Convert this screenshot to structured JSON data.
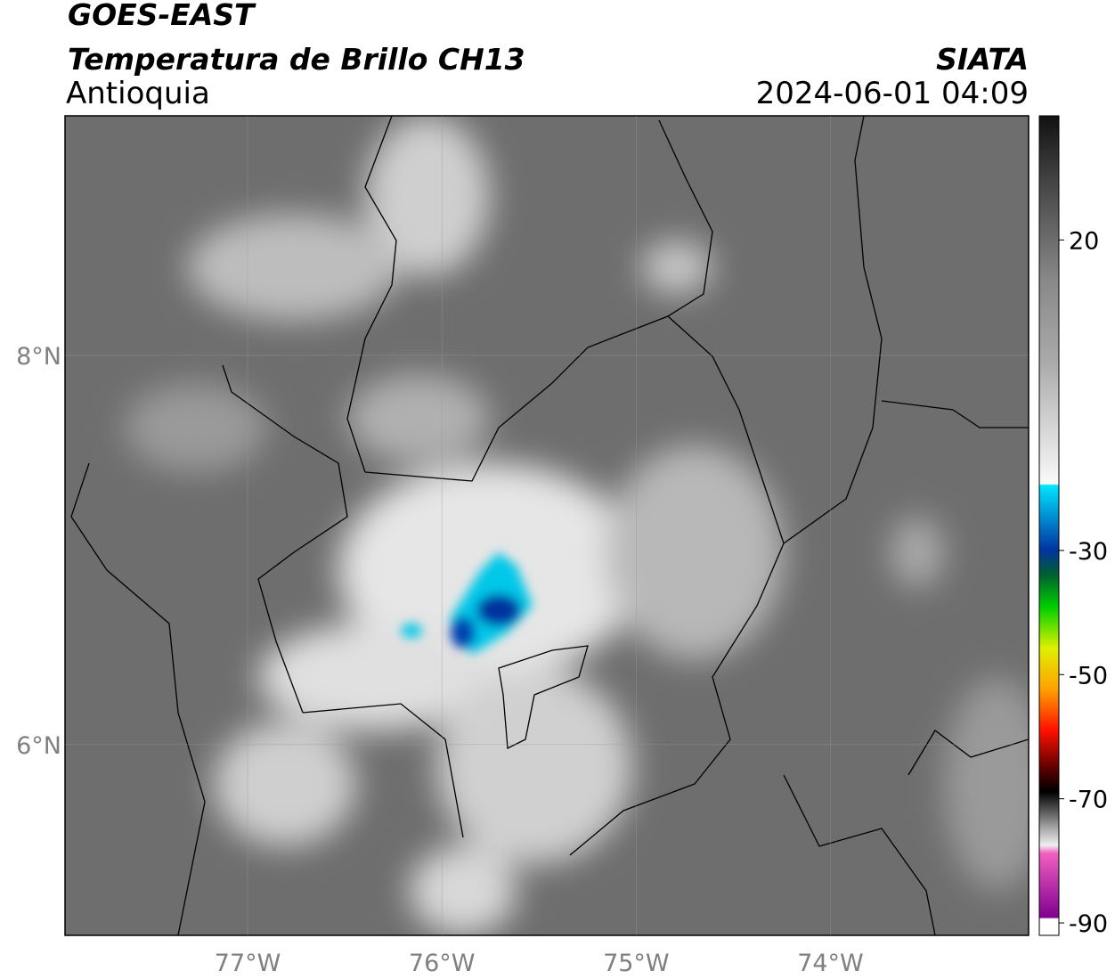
{
  "header": {
    "title": "GOES-EAST",
    "subtitle": "Temperatura de Brillo CH13",
    "region": "Antioquia",
    "source": "SIATA",
    "datetime": "2024-06-01 04:09"
  },
  "map": {
    "xlim": [
      -77.94,
      -72.98
    ],
    "ylim": [
      5.02,
      9.23
    ],
    "xticks": [
      {
        "value": -77,
        "label": "77°W"
      },
      {
        "value": -76,
        "label": "76°W"
      },
      {
        "value": -75,
        "label": "75°W"
      },
      {
        "value": -74,
        "label": "74°W"
      }
    ],
    "yticks": [
      {
        "value": 8,
        "label": "8°N"
      },
      {
        "value": 6,
        "label": "6°N"
      }
    ]
  },
  "colorbar": {
    "lim": [
      40,
      -92
    ],
    "ticks": [
      20,
      -30,
      -50,
      -70,
      -90
    ]
  }
}
